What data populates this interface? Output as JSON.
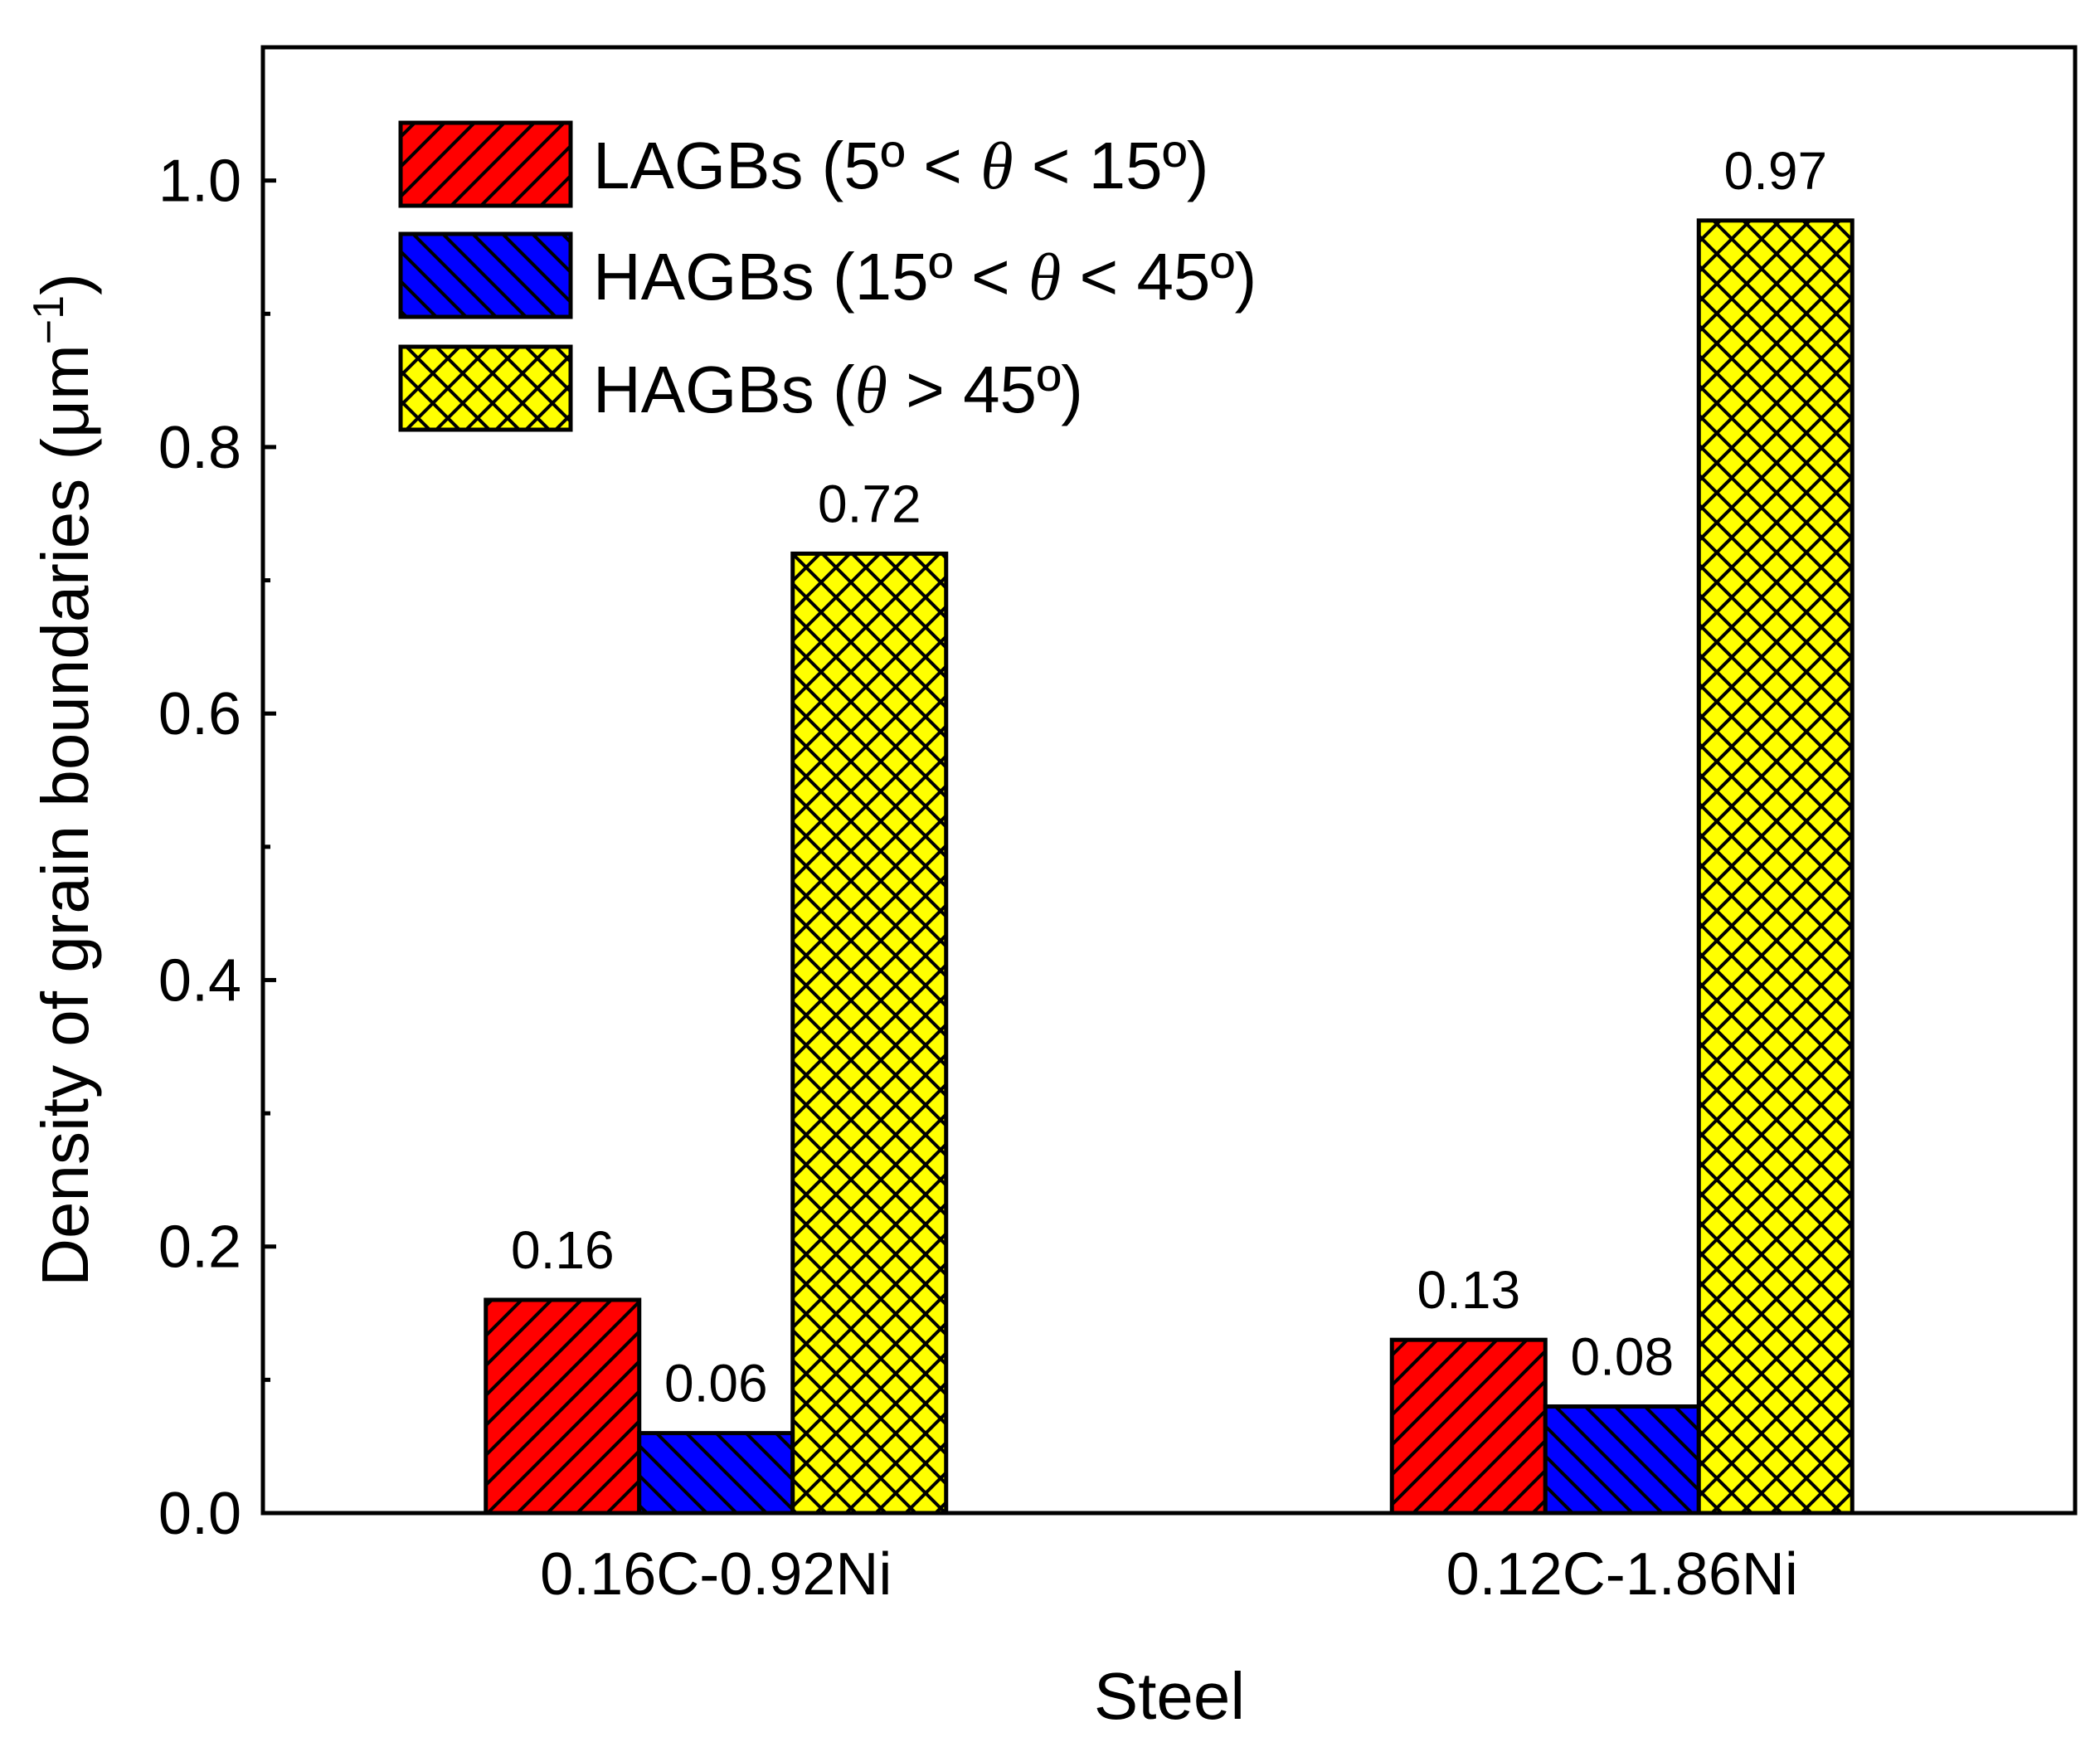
{
  "chart_data": {
    "type": "bar",
    "categories": [
      "0.16C-0.92Ni",
      "0.12C-1.86Ni"
    ],
    "series": [
      {
        "name": "LAGBs (5º < θ < 15º)",
        "name_pre": "LAGBs (5º < ",
        "name_theta": "θ",
        "name_post": " < 15º)",
        "color": "#ff0000",
        "pattern": "forward-diagonal",
        "values": [
          0.16,
          0.13
        ]
      },
      {
        "name": "HAGBs (15º < θ < 45º)",
        "name_pre": "HAGBs (15º < ",
        "name_theta": "θ",
        "name_post": " < 45º)",
        "color": "#0000ff",
        "pattern": "backward-diagonal",
        "values": [
          0.06,
          0.08
        ]
      },
      {
        "name": "HAGBs (θ > 45º)",
        "name_pre": "HAGBs (",
        "name_theta": "θ",
        "name_post": " > 45º)",
        "color": "#ffff00",
        "pattern": "crosshatch",
        "values": [
          0.72,
          0.97
        ]
      }
    ],
    "data_labels": [
      [
        "0.16",
        "0.13"
      ],
      [
        "0.06",
        "0.08"
      ],
      [
        "0.72",
        "0.97"
      ]
    ],
    "xlabel": "Steel",
    "ylabel_main": "Density of grain boundaries (μm",
    "ylabel_sup": "−1",
    "ylabel_end": ")",
    "ylim": [
      0,
      1.1
    ],
    "yticks": [
      0.0,
      0.2,
      0.4,
      0.6,
      0.8,
      1.0
    ],
    "ytick_labels": [
      "0.0",
      "0.2",
      "0.4",
      "0.6",
      "0.8",
      "1.0"
    ],
    "legend_position": "top-left",
    "grid": false
  }
}
